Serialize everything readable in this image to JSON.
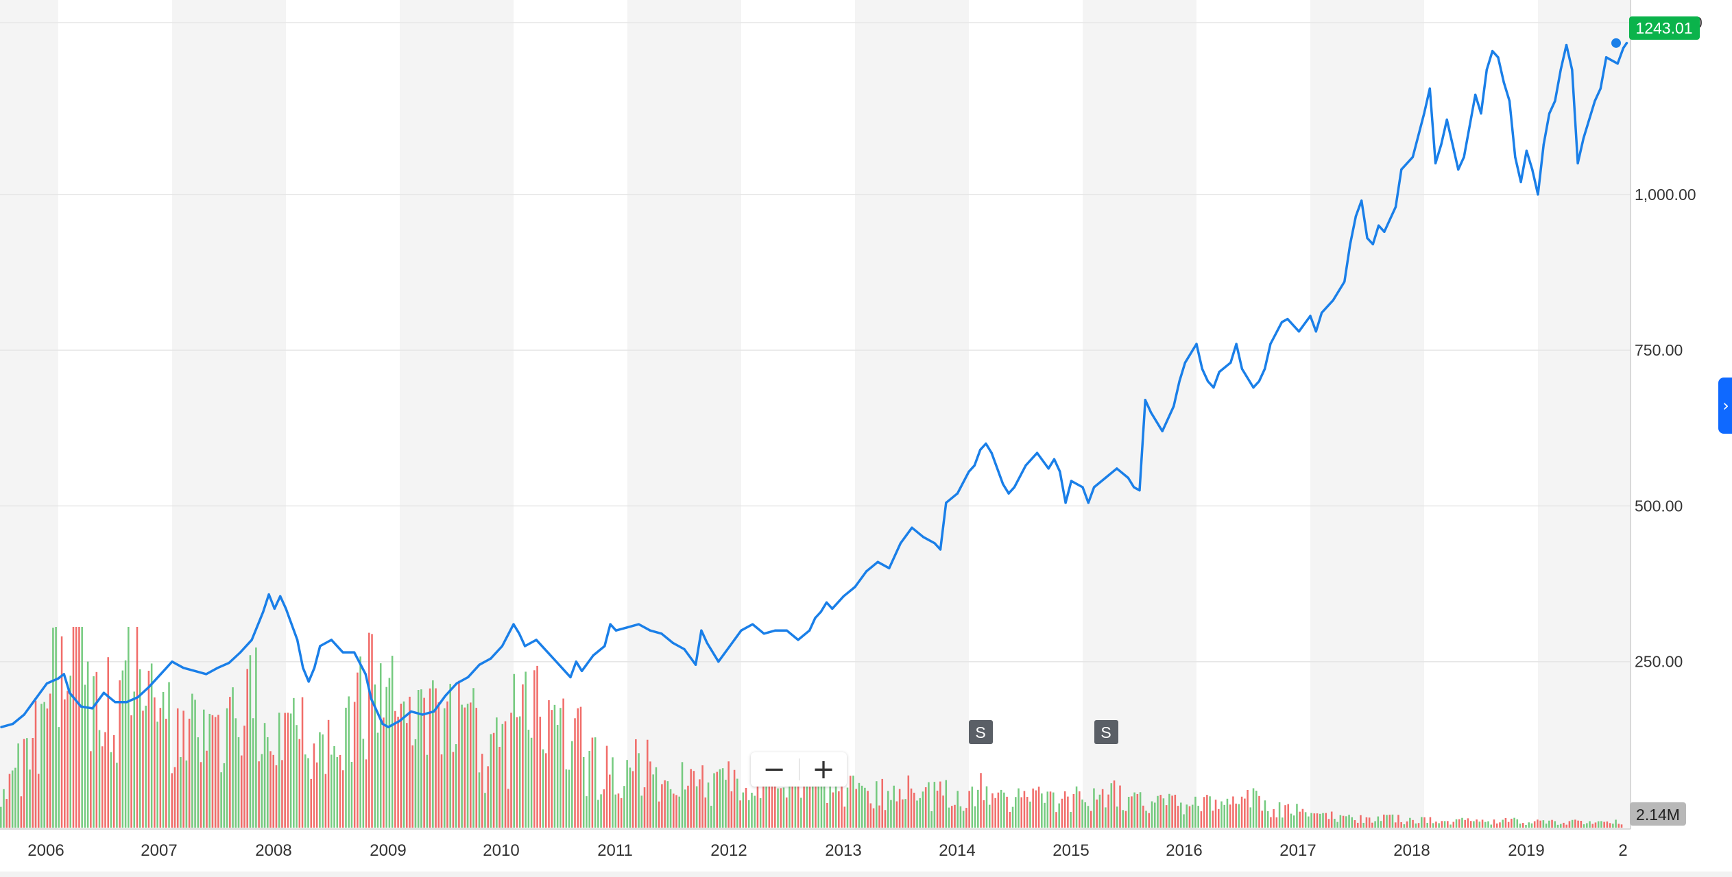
{
  "chart_data": {
    "type": "line",
    "series": [
      {
        "values": [
          [
            2005.5,
            145
          ],
          [
            2005.6,
            150
          ],
          [
            2005.7,
            165
          ],
          [
            2005.8,
            190
          ],
          [
            2005.9,
            215
          ],
          [
            2006.0,
            223
          ],
          [
            2006.05,
            230
          ],
          [
            2006.1,
            200
          ],
          [
            2006.2,
            178
          ],
          [
            2006.3,
            175
          ],
          [
            2006.4,
            200
          ],
          [
            2006.5,
            185
          ],
          [
            2006.6,
            185
          ],
          [
            2006.7,
            193
          ],
          [
            2006.8,
            210
          ],
          [
            2006.9,
            230
          ],
          [
            2007.0,
            250
          ],
          [
            2007.1,
            240
          ],
          [
            2007.2,
            235
          ],
          [
            2007.3,
            230
          ],
          [
            2007.4,
            240
          ],
          [
            2007.5,
            248
          ],
          [
            2007.6,
            265
          ],
          [
            2007.7,
            285
          ],
          [
            2007.8,
            330
          ],
          [
            2007.85,
            358
          ],
          [
            2007.9,
            335
          ],
          [
            2007.95,
            355
          ],
          [
            2008.0,
            335
          ],
          [
            2008.1,
            285
          ],
          [
            2008.15,
            240
          ],
          [
            2008.2,
            218
          ],
          [
            2008.25,
            240
          ],
          [
            2008.3,
            275
          ],
          [
            2008.4,
            285
          ],
          [
            2008.5,
            265
          ],
          [
            2008.6,
            265
          ],
          [
            2008.7,
            230
          ],
          [
            2008.75,
            190
          ],
          [
            2008.8,
            170
          ],
          [
            2008.85,
            150
          ],
          [
            2008.9,
            145
          ],
          [
            2009.0,
            155
          ],
          [
            2009.1,
            170
          ],
          [
            2009.2,
            165
          ],
          [
            2009.3,
            170
          ],
          [
            2009.4,
            195
          ],
          [
            2009.5,
            215
          ],
          [
            2009.6,
            225
          ],
          [
            2009.7,
            245
          ],
          [
            2009.8,
            255
          ],
          [
            2009.9,
            275
          ],
          [
            2010.0,
            310
          ],
          [
            2010.05,
            295
          ],
          [
            2010.1,
            275
          ],
          [
            2010.2,
            285
          ],
          [
            2010.3,
            265
          ],
          [
            2010.4,
            245
          ],
          [
            2010.5,
            225
          ],
          [
            2010.55,
            250
          ],
          [
            2010.6,
            235
          ],
          [
            2010.7,
            260
          ],
          [
            2010.8,
            275
          ],
          [
            2010.85,
            310
          ],
          [
            2010.9,
            300
          ],
          [
            2011.0,
            305
          ],
          [
            2011.1,
            310
          ],
          [
            2011.2,
            300
          ],
          [
            2011.3,
            295
          ],
          [
            2011.4,
            280
          ],
          [
            2011.5,
            270
          ],
          [
            2011.6,
            245
          ],
          [
            2011.65,
            300
          ],
          [
            2011.7,
            280
          ],
          [
            2011.8,
            250
          ],
          [
            2011.9,
            275
          ],
          [
            2012.0,
            300
          ],
          [
            2012.1,
            310
          ],
          [
            2012.2,
            295
          ],
          [
            2012.3,
            300
          ],
          [
            2012.4,
            300
          ],
          [
            2012.5,
            285
          ],
          [
            2012.6,
            300
          ],
          [
            2012.65,
            320
          ],
          [
            2012.7,
            330
          ],
          [
            2012.75,
            345
          ],
          [
            2012.8,
            335
          ],
          [
            2012.9,
            355
          ],
          [
            2013.0,
            370
          ],
          [
            2013.1,
            395
          ],
          [
            2013.2,
            410
          ],
          [
            2013.3,
            400
          ],
          [
            2013.4,
            440
          ],
          [
            2013.5,
            465
          ],
          [
            2013.6,
            450
          ],
          [
            2013.7,
            440
          ],
          [
            2013.75,
            430
          ],
          [
            2013.8,
            505
          ],
          [
            2013.9,
            520
          ],
          [
            2014.0,
            555
          ],
          [
            2014.05,
            565
          ],
          [
            2014.1,
            590
          ],
          [
            2014.15,
            600
          ],
          [
            2014.2,
            585
          ],
          [
            2014.3,
            535
          ],
          [
            2014.35,
            520
          ],
          [
            2014.4,
            530
          ],
          [
            2014.5,
            565
          ],
          [
            2014.6,
            585
          ],
          [
            2014.7,
            560
          ],
          [
            2014.75,
            575
          ],
          [
            2014.8,
            555
          ],
          [
            2014.85,
            505
          ],
          [
            2014.9,
            540
          ],
          [
            2015.0,
            530
          ],
          [
            2015.05,
            505
          ],
          [
            2015.1,
            530
          ],
          [
            2015.2,
            545
          ],
          [
            2015.3,
            560
          ],
          [
            2015.4,
            545
          ],
          [
            2015.45,
            530
          ],
          [
            2015.5,
            525
          ],
          [
            2015.55,
            670
          ],
          [
            2015.6,
            650
          ],
          [
            2015.7,
            620
          ],
          [
            2015.8,
            660
          ],
          [
            2015.85,
            700
          ],
          [
            2015.9,
            730
          ],
          [
            2016.0,
            760
          ],
          [
            2016.05,
            720
          ],
          [
            2016.1,
            700
          ],
          [
            2016.15,
            690
          ],
          [
            2016.2,
            715
          ],
          [
            2016.3,
            730
          ],
          [
            2016.35,
            760
          ],
          [
            2016.4,
            720
          ],
          [
            2016.5,
            690
          ],
          [
            2016.55,
            700
          ],
          [
            2016.6,
            720
          ],
          [
            2016.65,
            760
          ],
          [
            2016.75,
            795
          ],
          [
            2016.8,
            800
          ],
          [
            2016.9,
            780
          ],
          [
            2017.0,
            805
          ],
          [
            2017.05,
            780
          ],
          [
            2017.1,
            810
          ],
          [
            2017.2,
            830
          ],
          [
            2017.3,
            860
          ],
          [
            2017.35,
            920
          ],
          [
            2017.4,
            965
          ],
          [
            2017.45,
            990
          ],
          [
            2017.5,
            930
          ],
          [
            2017.55,
            920
          ],
          [
            2017.6,
            950
          ],
          [
            2017.65,
            940
          ],
          [
            2017.75,
            980
          ],
          [
            2017.8,
            1040
          ],
          [
            2017.85,
            1050
          ],
          [
            2017.9,
            1060
          ],
          [
            2018.0,
            1130
          ],
          [
            2018.05,
            1170
          ],
          [
            2018.1,
            1050
          ],
          [
            2018.15,
            1080
          ],
          [
            2018.2,
            1120
          ],
          [
            2018.3,
            1040
          ],
          [
            2018.35,
            1060
          ],
          [
            2018.45,
            1160
          ],
          [
            2018.5,
            1130
          ],
          [
            2018.55,
            1200
          ],
          [
            2018.6,
            1230
          ],
          [
            2018.65,
            1220
          ],
          [
            2018.7,
            1180
          ],
          [
            2018.75,
            1150
          ],
          [
            2018.8,
            1060
          ],
          [
            2018.85,
            1020
          ],
          [
            2018.9,
            1070
          ],
          [
            2018.95,
            1040
          ],
          [
            2019.0,
            1000
          ],
          [
            2019.05,
            1080
          ],
          [
            2019.1,
            1130
          ],
          [
            2019.15,
            1150
          ],
          [
            2019.2,
            1200
          ],
          [
            2019.25,
            1240
          ],
          [
            2019.3,
            1200
          ],
          [
            2019.35,
            1050
          ],
          [
            2019.4,
            1090
          ],
          [
            2019.5,
            1150
          ],
          [
            2019.55,
            1170
          ],
          [
            2019.6,
            1220
          ],
          [
            2019.7,
            1210
          ],
          [
            2019.75,
            1235
          ],
          [
            2019.78,
            1243.01
          ]
        ]
      }
    ],
    "volume_millions": [
      3.8,
      5.5,
      8.2,
      12.5,
      15.0,
      12.0,
      10.5,
      14.0,
      10.0,
      9.0,
      7.5,
      8.5,
      7.0,
      9.0,
      11.0,
      6.5,
      7.0,
      8.0,
      6.5,
      7.5,
      9.5,
      12.0,
      10.5,
      8.0,
      8.5,
      9.0,
      11.5,
      8.5,
      6.0,
      7.0,
      9.5,
      10.0,
      8.0,
      7.5,
      5.5,
      5.0,
      4.5,
      5.5,
      4.2,
      4.0,
      3.6,
      3.8,
      4.2,
      3.2,
      3.0,
      2.8,
      3.4,
      3.0,
      3.6,
      3.3,
      2.8,
      3.0,
      2.6,
      3.2,
      2.8,
      2.9,
      2.5,
      3.4,
      2.7,
      2.4,
      2.5,
      2.2,
      2.3,
      2.6,
      2.4,
      2.9,
      2.2,
      2.0,
      2.1,
      1.9,
      2.0,
      1.8,
      1.9,
      2.4,
      1.7,
      1.5,
      1.2,
      0.9,
      1.0,
      0.8,
      0.7,
      0.8,
      0.6,
      0.7,
      0.5,
      0.6,
      0.5,
      0.5,
      0.6,
      0.4,
      0.5,
      0.4,
      0.5,
      0.4,
      0.5,
      0.4
    ],
    "volume_colors": [
      "#5ec26a",
      "#ef5350"
    ],
    "x_tick_labels": [
      "2006",
      "2007",
      "2008",
      "2009",
      "2010",
      "2011",
      "2012",
      "2013",
      "2014",
      "2015",
      "2016",
      "2017",
      "2018",
      "2019",
      "2"
    ],
    "y_tick_labels": [
      "250.00",
      "500.00",
      "750.00",
      "1,000.00"
    ],
    "ylim": [
      0,
      1300
    ],
    "xlim": [
      2005.4,
      2019.95
    ],
    "grid": true,
    "line_color": "#1a7fe8",
    "current_price_label": "1243.01",
    "current_price_color": "#0bb34b",
    "y_label_clipped": "0",
    "volume_label": "2.14M",
    "events": [
      {
        "label": "S",
        "x": 2014.2
      },
      {
        "label": "S",
        "x": 2015.3
      }
    ],
    "stripe_color": "#f4f4f4"
  },
  "controls": {
    "zoom_out_icon": "minus-icon",
    "zoom_in_icon": "plus-icon",
    "zoom_out_label": "−",
    "zoom_in_label": "+",
    "side_tab_icon": "chevron-right-icon",
    "side_tab_label": "›"
  }
}
